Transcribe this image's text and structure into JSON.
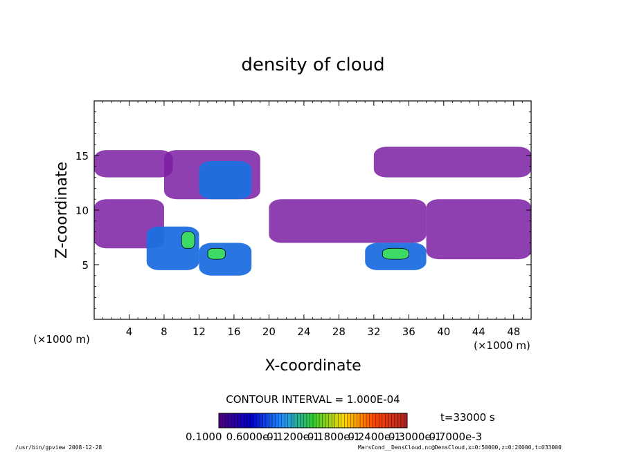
{
  "chart_data": {
    "type": "heatmap",
    "title": "density of cloud",
    "xlabel": "X-coordinate",
    "ylabel": "Z-coordinate",
    "x_unit_left": "(×1000 m)",
    "x_unit_right": "(×1000 m)",
    "xlim": [
      0,
      50
    ],
    "ylim": [
      0,
      20
    ],
    "x_ticks": [
      "4",
      "8",
      "12",
      "16",
      "20",
      "24",
      "28",
      "32",
      "36",
      "40",
      "44",
      "48"
    ],
    "y_ticks": [
      "5",
      "10",
      "15"
    ],
    "x_tick_values": [
      4,
      8,
      12,
      16,
      20,
      24,
      28,
      32,
      36,
      40,
      44,
      48
    ],
    "y_tick_values": [
      5,
      10,
      15
    ],
    "contour_interval": "CONTOUR INTERVAL = 1.000E-04",
    "time_label": "t=33000 s",
    "colorbar_labels": [
      "0.1000",
      "0.6000e-1",
      "0.1200e-1",
      "0.1800e-1",
      "0.2400e-1",
      "0.3000e-1",
      "0.7000e-3"
    ],
    "colorbar_colors": [
      "#4b0082",
      "#0000cd",
      "#1e90ff",
      "#32cd32",
      "#ffd700",
      "#ff4500",
      "#b22222"
    ],
    "footer_left": "/usr/bin/gpview   2008-12-28",
    "footer_right": "MarsCond__DensCloud.nc@DensCloud,x=0:50000,z=0:20000,t=033000",
    "regions": [
      {
        "name": "band-left",
        "x": [
          0,
          9
        ],
        "z": [
          13,
          15.5
        ],
        "level": 1
      },
      {
        "name": "band-left2",
        "x": [
          8,
          19
        ],
        "z": [
          11,
          15.5
        ],
        "level": 1
      },
      {
        "name": "cloud-mid",
        "x": [
          12,
          18
        ],
        "z": [
          11,
          14.5
        ],
        "level": 3
      },
      {
        "name": "band-right",
        "x": [
          32,
          50
        ],
        "z": [
          13,
          15.8
        ],
        "level": 1
      },
      {
        "name": "low-left",
        "x": [
          0,
          8
        ],
        "z": [
          6.5,
          11
        ],
        "level": 1
      },
      {
        "name": "low-blob1",
        "x": [
          6,
          12
        ],
        "z": [
          4.5,
          8.5
        ],
        "level": 3
      },
      {
        "name": "low-blob2",
        "x": [
          12,
          18
        ],
        "z": [
          4,
          7
        ],
        "level": 3
      },
      {
        "name": "mid-center",
        "x": [
          20,
          38
        ],
        "z": [
          7,
          11
        ],
        "level": 1
      },
      {
        "name": "low-right",
        "x": [
          31,
          38
        ],
        "z": [
          4.5,
          7
        ],
        "level": 3
      },
      {
        "name": "low-far-right",
        "x": [
          38,
          50
        ],
        "z": [
          5.5,
          11
        ],
        "level": 1
      },
      {
        "name": "peak1",
        "x": [
          10,
          11.5
        ],
        "z": [
          6.5,
          8
        ],
        "level": 4
      },
      {
        "name": "peak2",
        "x": [
          13,
          15
        ],
        "z": [
          5.5,
          6.5
        ],
        "level": 4
      },
      {
        "name": "peak3",
        "x": [
          33,
          36
        ],
        "z": [
          5.5,
          6.5
        ],
        "level": 4
      }
    ]
  }
}
